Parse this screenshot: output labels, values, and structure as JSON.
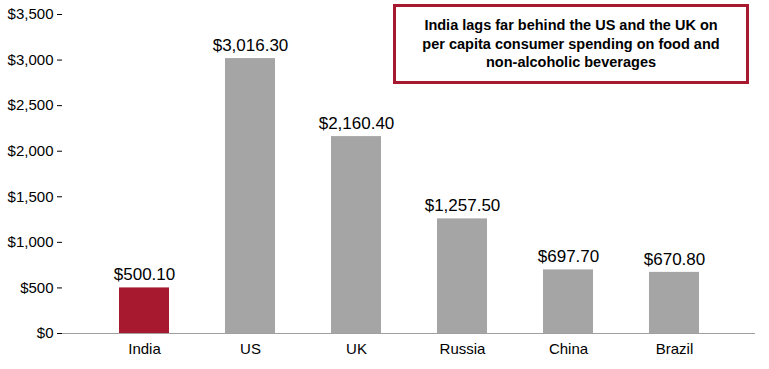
{
  "chart_data": {
    "type": "bar",
    "annotation": "India lags far behind the US and the UK on per capita consumer spending on food and non-alcoholic beverages",
    "categories": [
      "India",
      "US",
      "UK",
      "Russia",
      "China",
      "Brazil"
    ],
    "values": [
      500.1,
      3016.3,
      2160.4,
      1257.5,
      697.7,
      670.8
    ],
    "value_labels": [
      "$500.10",
      "$3,016.30",
      "$2,160.40",
      "$1,257.50",
      "$697.70",
      "$670.80"
    ],
    "colors": [
      "#A6192E",
      "#A5A5A5",
      "#A5A5A5",
      "#A5A5A5",
      "#A5A5A5",
      "#A5A5A5"
    ],
    "ylim": [
      0,
      3500
    ],
    "yticks": [
      {
        "value": 0,
        "label": "$0"
      },
      {
        "value": 500,
        "label": "$500"
      },
      {
        "value": 1000,
        "label": "$1,000"
      },
      {
        "value": 1500,
        "label": "$1,500"
      },
      {
        "value": 2000,
        "label": "$2,000"
      },
      {
        "value": 2500,
        "label": "$2,500"
      },
      {
        "value": 3000,
        "label": "$3,000"
      },
      {
        "value": 3500,
        "label": "$3,500"
      }
    ],
    "grid": false,
    "data_labels": true
  }
}
